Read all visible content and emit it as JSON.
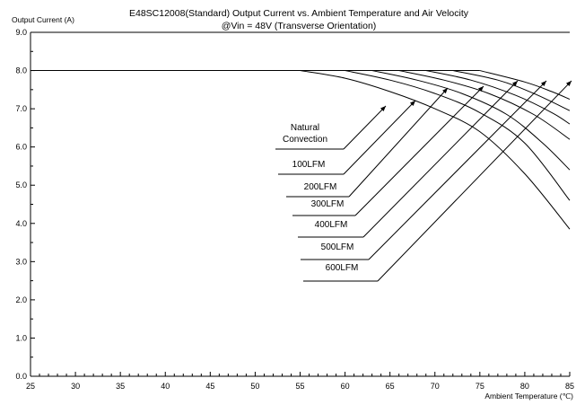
{
  "chart_data": {
    "type": "line",
    "title": "E48SC12008(Standard)  Output Current vs. Ambient Temperature and Air Velocity",
    "subtitle": "@Vin = 48V (Transverse Orientation)",
    "xlabel": "Ambient Temperature (℃)",
    "ylabel": "Output Current (A)",
    "xlim": [
      25,
      85
    ],
    "ylim": [
      0,
      9
    ],
    "x_ticks": [
      "25",
      "30",
      "35",
      "40",
      "45",
      "50",
      "55",
      "60",
      "65",
      "70",
      "75",
      "80",
      "85"
    ],
    "y_ticks": [
      "0.0",
      "1.0",
      "2.0",
      "3.0",
      "4.0",
      "5.0",
      "6.0",
      "7.0",
      "8.0",
      "9.0"
    ],
    "grid": false,
    "series": [
      {
        "name": "Natural Convection",
        "x": [
          25,
          55,
          60,
          65,
          70,
          75,
          80,
          85
        ],
        "y": [
          8.0,
          8.0,
          7.8,
          7.45,
          7.0,
          6.4,
          5.3,
          3.85
        ]
      },
      {
        "name": "100LFM",
        "x": [
          25,
          60,
          65,
          70,
          75,
          80,
          85
        ],
        "y": [
          8.0,
          8.0,
          7.75,
          7.4,
          6.9,
          6.1,
          4.6
        ]
      },
      {
        "name": "200LFM",
        "x": [
          25,
          63,
          68,
          73,
          78,
          82,
          85
        ],
        "y": [
          8.0,
          8.0,
          7.75,
          7.4,
          6.85,
          6.1,
          5.4
        ]
      },
      {
        "name": "300LFM",
        "x": [
          25,
          66,
          71,
          76,
          81,
          85
        ],
        "y": [
          8.0,
          8.0,
          7.75,
          7.4,
          6.85,
          6.2
        ]
      },
      {
        "name": "400LFM",
        "x": [
          25,
          69,
          74,
          79,
          83,
          85
        ],
        "y": [
          8.0,
          8.0,
          7.75,
          7.35,
          6.9,
          6.6
        ]
      },
      {
        "name": "500LFM",
        "x": [
          25,
          72,
          77,
          81,
          85
        ],
        "y": [
          8.0,
          8.0,
          7.75,
          7.4,
          6.95
        ]
      },
      {
        "name": "600LFM",
        "x": [
          25,
          75,
          80,
          83,
          85
        ],
        "y": [
          8.0,
          8.0,
          7.7,
          7.45,
          7.25
        ]
      }
    ],
    "annotations": [
      {
        "lines": [
          "Natural",
          "Convection"
        ]
      },
      {
        "lines": [
          "100LFM"
        ]
      },
      {
        "lines": [
          "200LFM"
        ]
      },
      {
        "lines": [
          "300LFM"
        ]
      },
      {
        "lines": [
          "400LFM"
        ]
      },
      {
        "lines": [
          "500LFM"
        ]
      },
      {
        "lines": [
          "600LFM"
        ]
      }
    ],
    "legend": "none"
  }
}
